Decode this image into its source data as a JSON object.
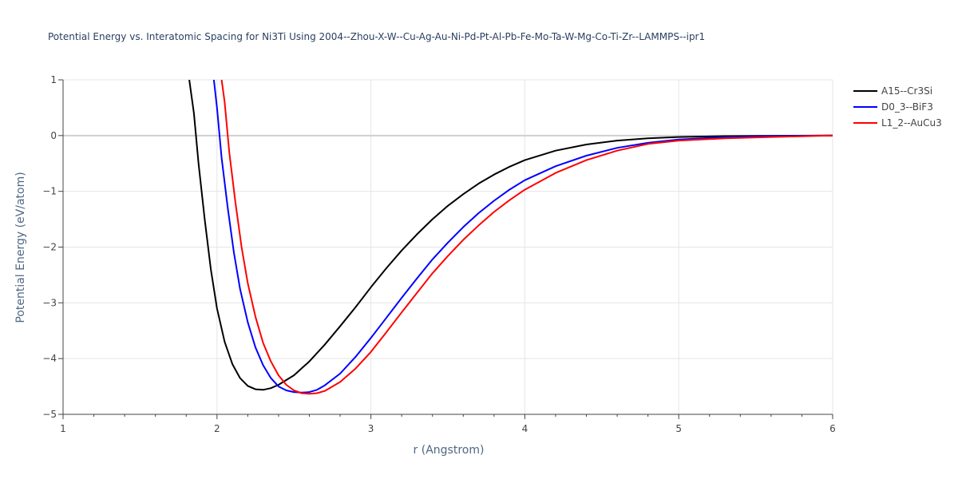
{
  "chart_data": {
    "type": "line",
    "title": "Potential Energy vs. Interatomic Spacing for Ni3Ti Using 2004--Zhou-X-W--Cu-Ag-Au-Ni-Pd-Pt-Al-Pb-Fe-Mo-Ta-W-Mg-Co-Ti-Zr--LAMMPS--ipr1",
    "xlabel": "r (Angstrom)",
    "ylabel": "Potential Energy (eV/atom)",
    "xlim": [
      1,
      6
    ],
    "ylim": [
      -5,
      1
    ],
    "x_ticks": [
      1,
      2,
      3,
      4,
      5,
      6
    ],
    "y_ticks": [
      1,
      0,
      -1,
      -2,
      -3,
      -4,
      -5
    ],
    "x_tick_labels": [
      "1",
      "2",
      "3",
      "4",
      "5",
      "6"
    ],
    "y_tick_labels": [
      "1",
      "0",
      "−1",
      "−2",
      "−3",
      "−4",
      "−5"
    ],
    "grid": true,
    "legend_position": "top-right",
    "series": [
      {
        "name": "A15--Cr3Si",
        "color": "#000000",
        "points": [
          [
            1.82,
            1.0
          ],
          [
            1.85,
            0.4
          ],
          [
            1.88,
            -0.5
          ],
          [
            1.92,
            -1.5
          ],
          [
            1.96,
            -2.4
          ],
          [
            2.0,
            -3.1
          ],
          [
            2.05,
            -3.7
          ],
          [
            2.1,
            -4.1
          ],
          [
            2.15,
            -4.35
          ],
          [
            2.2,
            -4.49
          ],
          [
            2.25,
            -4.55
          ],
          [
            2.3,
            -4.56
          ],
          [
            2.35,
            -4.53
          ],
          [
            2.4,
            -4.47
          ],
          [
            2.5,
            -4.3
          ],
          [
            2.6,
            -4.05
          ],
          [
            2.7,
            -3.75
          ],
          [
            2.8,
            -3.42
          ],
          [
            2.9,
            -3.08
          ],
          [
            3.0,
            -2.72
          ],
          [
            3.1,
            -2.38
          ],
          [
            3.2,
            -2.06
          ],
          [
            3.3,
            -1.77
          ],
          [
            3.4,
            -1.5
          ],
          [
            3.5,
            -1.26
          ],
          [
            3.6,
            -1.05
          ],
          [
            3.7,
            -0.86
          ],
          [
            3.8,
            -0.7
          ],
          [
            3.9,
            -0.56
          ],
          [
            4.0,
            -0.44
          ],
          [
            4.2,
            -0.27
          ],
          [
            4.4,
            -0.16
          ],
          [
            4.6,
            -0.09
          ],
          [
            4.8,
            -0.05
          ],
          [
            5.0,
            -0.025
          ],
          [
            5.3,
            -0.01
          ],
          [
            5.6,
            -0.004
          ],
          [
            6.0,
            0.0
          ]
        ]
      },
      {
        "name": "D0_3--BiF3",
        "color": "#0000ff",
        "points": [
          [
            1.98,
            1.0
          ],
          [
            2.0,
            0.5
          ],
          [
            2.03,
            -0.4
          ],
          [
            2.07,
            -1.3
          ],
          [
            2.11,
            -2.1
          ],
          [
            2.15,
            -2.75
          ],
          [
            2.2,
            -3.35
          ],
          [
            2.25,
            -3.8
          ],
          [
            2.3,
            -4.12
          ],
          [
            2.35,
            -4.35
          ],
          [
            2.4,
            -4.5
          ],
          [
            2.45,
            -4.57
          ],
          [
            2.5,
            -4.6
          ],
          [
            2.55,
            -4.61
          ],
          [
            2.6,
            -4.6
          ],
          [
            2.65,
            -4.56
          ],
          [
            2.7,
            -4.48
          ],
          [
            2.8,
            -4.27
          ],
          [
            2.9,
            -3.97
          ],
          [
            3.0,
            -3.63
          ],
          [
            3.1,
            -3.27
          ],
          [
            3.2,
            -2.91
          ],
          [
            3.3,
            -2.56
          ],
          [
            3.4,
            -2.22
          ],
          [
            3.5,
            -1.92
          ],
          [
            3.6,
            -1.64
          ],
          [
            3.7,
            -1.39
          ],
          [
            3.8,
            -1.17
          ],
          [
            3.9,
            -0.97
          ],
          [
            4.0,
            -0.8
          ],
          [
            4.2,
            -0.55
          ],
          [
            4.4,
            -0.36
          ],
          [
            4.6,
            -0.22
          ],
          [
            4.8,
            -0.13
          ],
          [
            5.0,
            -0.07
          ],
          [
            5.3,
            -0.03
          ],
          [
            5.6,
            -0.01
          ],
          [
            6.0,
            0.0
          ]
        ]
      },
      {
        "name": "L1_2--AuCu3",
        "color": "#ff0000",
        "points": [
          [
            2.03,
            1.0
          ],
          [
            2.05,
            0.6
          ],
          [
            2.08,
            -0.3
          ],
          [
            2.12,
            -1.2
          ],
          [
            2.16,
            -2.0
          ],
          [
            2.2,
            -2.65
          ],
          [
            2.25,
            -3.25
          ],
          [
            2.3,
            -3.72
          ],
          [
            2.35,
            -4.05
          ],
          [
            2.4,
            -4.3
          ],
          [
            2.45,
            -4.47
          ],
          [
            2.5,
            -4.57
          ],
          [
            2.55,
            -4.62
          ],
          [
            2.6,
            -4.63
          ],
          [
            2.65,
            -4.62
          ],
          [
            2.7,
            -4.58
          ],
          [
            2.8,
            -4.42
          ],
          [
            2.9,
            -4.18
          ],
          [
            3.0,
            -3.88
          ],
          [
            3.1,
            -3.53
          ],
          [
            3.2,
            -3.17
          ],
          [
            3.3,
            -2.82
          ],
          [
            3.4,
            -2.47
          ],
          [
            3.5,
            -2.16
          ],
          [
            3.6,
            -1.87
          ],
          [
            3.7,
            -1.61
          ],
          [
            3.8,
            -1.37
          ],
          [
            3.9,
            -1.16
          ],
          [
            4.0,
            -0.97
          ],
          [
            4.2,
            -0.67
          ],
          [
            4.4,
            -0.44
          ],
          [
            4.6,
            -0.27
          ],
          [
            4.8,
            -0.15
          ],
          [
            5.0,
            -0.09
          ],
          [
            5.3,
            -0.05
          ],
          [
            5.6,
            -0.025
          ],
          [
            6.0,
            0.0
          ]
        ]
      }
    ]
  }
}
